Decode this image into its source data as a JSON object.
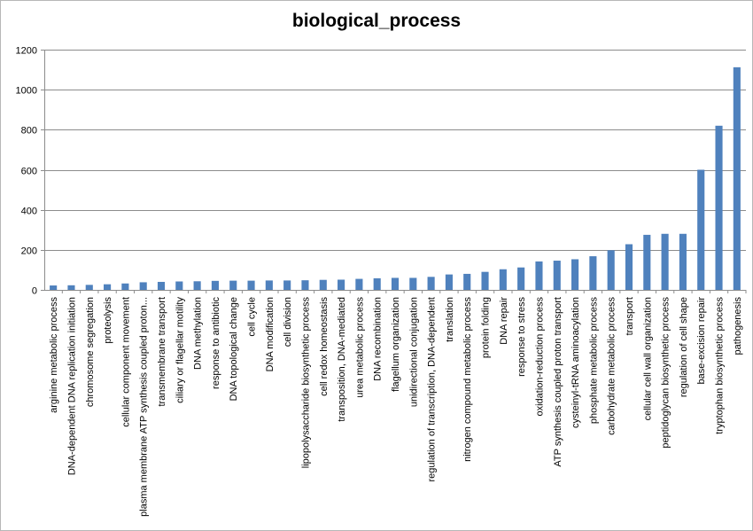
{
  "chart_data": {
    "type": "bar",
    "title": "biological_process",
    "xlabel": "",
    "ylabel": "",
    "ylim": [
      0,
      1200
    ],
    "yticks": [
      0,
      200,
      400,
      600,
      800,
      1000,
      1200
    ],
    "grid": true,
    "legend": "none",
    "bar_color": "#4f81bd",
    "categories": [
      "arginine metabolic process",
      "DNA-dependent DNA replication initiation",
      "chromosome segregation",
      "proteolysis",
      "cellular component movement",
      "plasma membrane ATP synthesis coupled proton...",
      "transmembrane transport",
      "ciliary or flagellar motility",
      "DNA methylation",
      "response to antibiotic",
      "DNA topological change",
      "cell cycle",
      "DNA modification",
      "cell division",
      "lipopolysaccharide biosynthetic process",
      "cell redox homeostasis",
      "transposition, DNA-mediated",
      "urea metabolic process",
      "DNA recombination",
      "flagellum organization",
      "unidirectional conjugation",
      "regulation of transcription, DNA-dependent",
      "translation",
      "nitrogen compound metabolic process",
      "protein folding",
      "DNA repair",
      "response to stress",
      "oxidation-reduction process",
      "ATP synthesis coupled proton transport",
      "cysteinyl-tRNA aminoacylation",
      "phosphate metabolic process",
      "carbohydrate metabolic process",
      "transport",
      "cellular cell wall organization",
      "peptidoglycan biosynthetic process",
      "regulation of cell shape",
      "base-excision repair",
      "tryptophan biosynthetic process",
      "pathogenesis"
    ],
    "values": [
      22,
      23,
      25,
      28,
      32,
      38,
      40,
      42,
      43,
      45,
      46,
      46,
      47,
      47,
      48,
      50,
      51,
      55,
      58,
      60,
      60,
      65,
      77,
      80,
      90,
      103,
      112,
      142,
      146,
      153,
      168,
      198,
      228,
      275,
      280,
      280,
      600,
      820,
      1112
    ]
  }
}
